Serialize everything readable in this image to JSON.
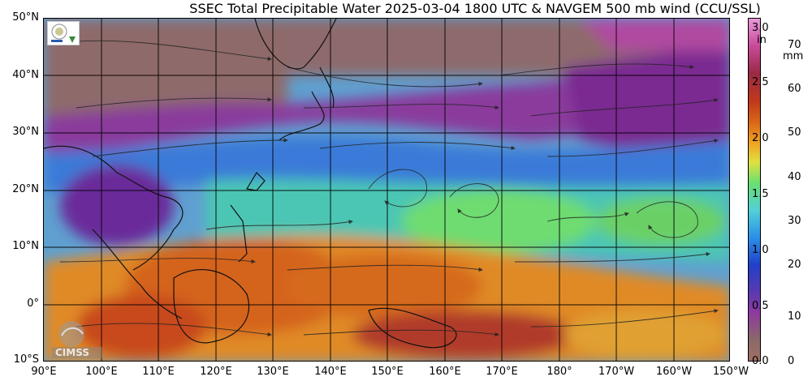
{
  "title": "SSEC Total Precipitable Water  2025-03-04 1800 UTC & NAVGEM 500 mb wind (CCU/SSL)",
  "map": {
    "lat_labels": [
      "50°N",
      "40°N",
      "30°N",
      "20°N",
      "10°N",
      "0°",
      "10°S"
    ],
    "lon_labels": [
      "90°E",
      "100°E",
      "110°E",
      "120°E",
      "130°E",
      "140°E",
      "150°E",
      "160°E",
      "170°E",
      "180°",
      "170°W",
      "160°W",
      "150°W"
    ]
  },
  "colorbar": {
    "inch_unit": "in",
    "mm_unit": "mm",
    "inch_ticks": [
      "3.0",
      "2.5",
      "2.0",
      "1.5",
      "1.0",
      "0.5",
      "0.0"
    ],
    "mm_ticks": [
      "70",
      "60",
      "50",
      "40",
      "30",
      "20",
      "10",
      "0"
    ]
  },
  "logos": {
    "cimss_text": "CIMSS"
  }
}
